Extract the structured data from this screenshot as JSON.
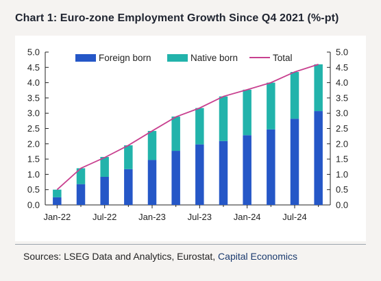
{
  "title": "Chart 1: Euro-zone Employment Growth Since Q4 2021 (%-pt)",
  "sources": {
    "prefix": "Sources: LSEG Data and Analytics, Eurostat,",
    "link": "Capital Economics"
  },
  "colors": {
    "foreign": "#2557c7",
    "native": "#22b3ab",
    "total": "#c8408f",
    "background": "#f5f3f1"
  },
  "chart_data": {
    "type": "bar",
    "stacked": true,
    "title": "Chart 1: Euro-zone Employment Growth Since Q4 2021 (%-pt)",
    "x_tick_labels": [
      "Jan-22",
      "Jul-22",
      "Jan-23",
      "Jul-23",
      "Jan-24",
      "Jul-24"
    ],
    "x_tick_indices": [
      0,
      2,
      4,
      6,
      8,
      10
    ],
    "categories": [
      "Q1-22",
      "Q2-22",
      "Q3-22",
      "Q4-22",
      "Q1-23",
      "Q2-23",
      "Q3-23",
      "Q4-23",
      "Q1-24",
      "Q2-24",
      "Q3-24",
      "Q4-24"
    ],
    "series": [
      {
        "name": "Foreign born",
        "kind": "bar",
        "values": [
          0.25,
          0.68,
          0.92,
          1.17,
          1.47,
          1.77,
          1.98,
          2.09,
          2.28,
          2.47,
          2.82,
          3.07
        ]
      },
      {
        "name": "Native born",
        "kind": "bar",
        "values": [
          0.25,
          0.52,
          0.65,
          0.78,
          0.95,
          1.12,
          1.19,
          1.46,
          1.49,
          1.53,
          1.53,
          1.53
        ]
      },
      {
        "name": "Total",
        "kind": "line",
        "values": [
          0.5,
          1.2,
          1.55,
          1.95,
          2.42,
          2.88,
          3.17,
          3.55,
          3.77,
          4.0,
          4.35,
          4.6
        ]
      }
    ],
    "ylim": [
      0,
      5
    ],
    "y_ticks": [
      "0.0",
      "0.5",
      "1.0",
      "1.5",
      "2.0",
      "2.5",
      "3.0",
      "3.5",
      "4.0",
      "4.5",
      "5.0"
    ],
    "dual_y_axis": true,
    "grid": false,
    "legend_position": "top"
  }
}
